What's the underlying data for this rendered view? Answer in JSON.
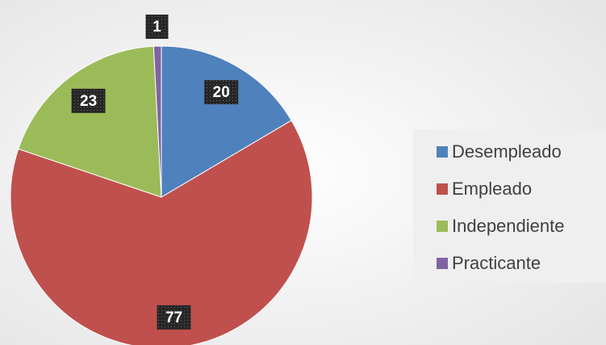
{
  "chart_data": {
    "type": "pie",
    "categories": [
      "Desempleado",
      "Empleado",
      "Independiente",
      "Practicante"
    ],
    "values": [
      20,
      77,
      23,
      1
    ],
    "colors": [
      "#4f81bd",
      "#c0504d",
      "#9bbb59",
      "#8064a2"
    ],
    "legend": "right"
  }
}
